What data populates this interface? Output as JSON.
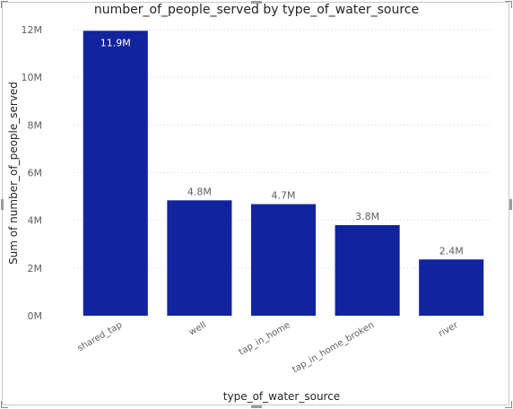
{
  "chart_data": {
    "type": "bar",
    "title": "number_of_people_served by type_of_water_source",
    "xlabel": "type_of_water_source",
    "ylabel": "Sum of number_of_people_served",
    "categories": [
      "shared_tap",
      "well",
      "tap_in_home",
      "tap_in_home_broken",
      "river"
    ],
    "values": [
      11.95,
      4.84,
      4.68,
      3.8,
      2.36
    ],
    "data_labels": [
      "11.9M",
      "4.8M",
      "4.7M",
      "3.8M",
      "2.4M"
    ],
    "yticks": [
      0,
      2,
      4,
      6,
      8,
      10,
      12
    ],
    "ytick_labels": [
      "0M",
      "2M",
      "4M",
      "6M",
      "8M",
      "10M",
      "12M"
    ],
    "ylim": [
      0,
      12
    ],
    "grid": true,
    "bar_color": "#12239E"
  }
}
